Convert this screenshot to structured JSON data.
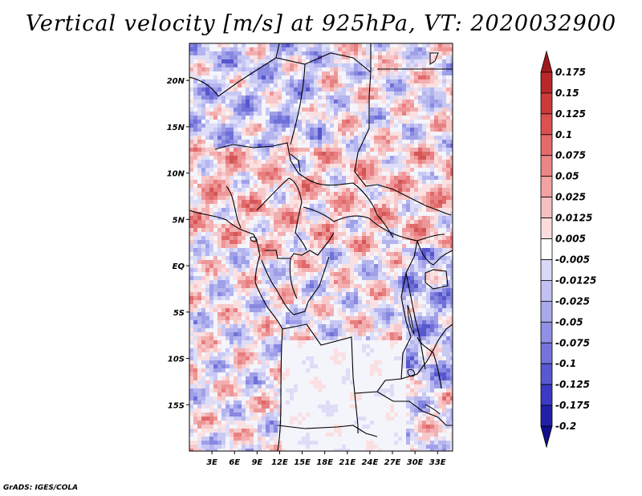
{
  "title": "Vertical velocity [m/s] at 925hPa, VT: 2020032900",
  "footer": "GrADS: IGES/COLA",
  "map": {
    "lon_labels": [
      "3E",
      "6E",
      "9E",
      "12E",
      "15E",
      "18E",
      "21E",
      "24E",
      "27E",
      "30E",
      "33E"
    ],
    "lat_labels": [
      "20N",
      "15N",
      "10N",
      "5N",
      "EQ",
      "5S",
      "10S",
      "15S"
    ],
    "lon_range": [
      0,
      35
    ],
    "lat_range": [
      -20,
      24
    ]
  },
  "colorbar": {
    "labels": [
      "0.175",
      "0.15",
      "0.125",
      "0.1",
      "0.075",
      "0.05",
      "0.025",
      "0.0125",
      "0.005",
      "-0.005",
      "-0.0125",
      "-0.025",
      "-0.05",
      "-0.075",
      "-0.1",
      "-0.125",
      "-0.175",
      "-0.2"
    ],
    "colors": [
      "#a01a1a",
      "#b82828",
      "#cc3a3a",
      "#dc5050",
      "#e56a6a",
      "#ec8585",
      "#f2a2a2",
      "#f7c0c0",
      "#fbdcdc",
      "#ffffff",
      "#d8d8f7",
      "#c0c0f2",
      "#a8a8ec",
      "#9090e4",
      "#7474dc",
      "#5858d2",
      "#3a3ac4",
      "#2020a8",
      "#10108c"
    ]
  }
}
